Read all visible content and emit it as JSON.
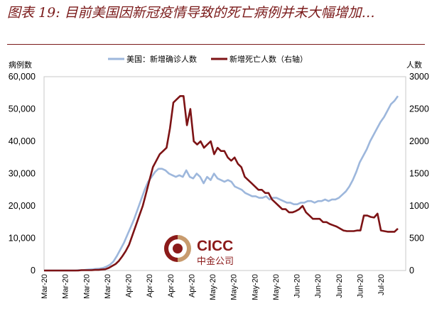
{
  "title": "图表 19:  目前美国因新冠疫情导致的死亡病例并未大幅增加…",
  "chart_data": {
    "type": "line",
    "ylabel_left": "病例数",
    "ylabel_right": "人数",
    "left_ticks": [
      "60,000",
      "50,000",
      "40,000",
      "30,000",
      "20,000",
      "10,000",
      "0"
    ],
    "right_ticks": [
      "3000",
      "2500",
      "2000",
      "1500",
      "1000",
      "500",
      "0"
    ],
    "ylim_left": [
      0,
      60000
    ],
    "ylim_right": [
      0,
      3000
    ],
    "x_ticks": [
      "Mar-20",
      "Mar-20",
      "Mar-20",
      "Mar-20",
      "Apr-20",
      "Apr-20",
      "Apr-20",
      "Apr-20",
      "May-20",
      "May-20",
      "May-20",
      "May-20",
      "Jun-20",
      "Jun-20",
      "Jun-20",
      "Jun-20",
      "Jul-20"
    ],
    "series": [
      {
        "name": "美国：新增确诊人数",
        "axis": "left",
        "color": "#9db7dc",
        "values": [
          0,
          0,
          0,
          0,
          0,
          0,
          0,
          0,
          0,
          0,
          100,
          100,
          200,
          300,
          400,
          500,
          600,
          800,
          1200,
          1800,
          2800,
          4500,
          6500,
          8500,
          11000,
          13500,
          16000,
          19000,
          22000,
          25000,
          27500,
          29000,
          30500,
          31500,
          31500,
          31000,
          30000,
          29500,
          29000,
          29500,
          29000,
          31000,
          29000,
          28500,
          30000,
          29000,
          27000,
          29000,
          28000,
          30000,
          28500,
          28000,
          27500,
          28000,
          27500,
          26000,
          25500,
          25000,
          24000,
          23500,
          23000,
          23000,
          22500,
          22500,
          23000,
          22000,
          22500,
          22500,
          22000,
          21500,
          21000,
          21000,
          20500,
          20500,
          21000,
          21000,
          21500,
          21500,
          21000,
          21500,
          21500,
          22000,
          21500,
          22000,
          22000,
          22500,
          23500,
          24500,
          26000,
          28000,
          30500,
          33500,
          35500,
          37500,
          40000,
          42000,
          44000,
          46000,
          47500,
          49500,
          51500,
          52500,
          54000
        ]
      },
      {
        "name": "新增死亡人数（右轴）",
        "axis": "right",
        "color": "#7d1315",
        "values": [
          0,
          0,
          0,
          0,
          0,
          0,
          0,
          0,
          0,
          0,
          0,
          5,
          5,
          5,
          5,
          10,
          10,
          15,
          20,
          40,
          70,
          100,
          150,
          220,
          300,
          400,
          550,
          700,
          850,
          1000,
          1200,
          1400,
          1600,
          1700,
          1800,
          1850,
          1900,
          2200,
          2600,
          2650,
          2700,
          2700,
          2250,
          2500,
          2000,
          1950,
          2000,
          1900,
          1950,
          2000,
          1800,
          1900,
          1850,
          1850,
          1750,
          1700,
          1750,
          1650,
          1600,
          1450,
          1400,
          1350,
          1300,
          1250,
          1250,
          1200,
          1200,
          1100,
          1050,
          1000,
          950,
          950,
          900,
          900,
          920,
          950,
          1000,
          900,
          850,
          800,
          800,
          800,
          750,
          750,
          720,
          700,
          680,
          650,
          620,
          610,
          610,
          610,
          620,
          620,
          850,
          850,
          830,
          820,
          880,
          620,
          610,
          600,
          600,
          600,
          650
        ]
      }
    ],
    "logo": {
      "latin": "CICC",
      "chinese": "中金公司"
    }
  }
}
